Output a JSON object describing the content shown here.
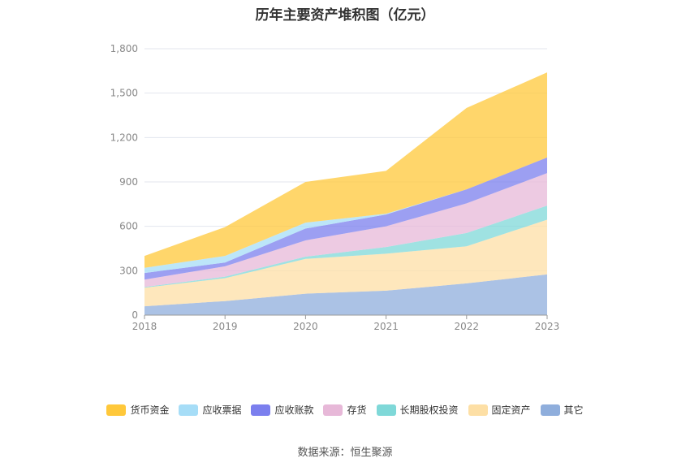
{
  "chart_data": {
    "type": "area",
    "title": "历年主要资产堆积图（亿元）",
    "x": [
      "2018",
      "2019",
      "2020",
      "2021",
      "2022",
      "2023"
    ],
    "y_ticks": [
      "0",
      "300",
      "600",
      "900",
      "1,200",
      "1,500",
      "1,800"
    ],
    "ylim": [
      0,
      1800
    ],
    "stacked": true,
    "grid": true,
    "legend_position": "bottom",
    "series": [
      {
        "name": "其它",
        "color": "#8FAEDC",
        "values": [
          60,
          95,
          145,
          165,
          215,
          275
        ]
      },
      {
        "name": "固定资产",
        "color": "#FDDFA5",
        "values": [
          125,
          155,
          235,
          250,
          250,
          370
        ]
      },
      {
        "name": "长期股权投资",
        "color": "#7FD8D8",
        "values": [
          5,
          10,
          15,
          45,
          90,
          95
        ]
      },
      {
        "name": "存货",
        "color": "#E7B8D8",
        "values": [
          50,
          70,
          110,
          140,
          200,
          220
        ]
      },
      {
        "name": "应收账款",
        "color": "#7B7FEE",
        "values": [
          45,
          25,
          80,
          80,
          95,
          105
        ]
      },
      {
        "name": "应收票据",
        "color": "#A6DDF7",
        "values": [
          35,
          45,
          40,
          5,
          0,
          0
        ]
      },
      {
        "name": "货币资金",
        "color": "#FFC83A",
        "values": [
          80,
          195,
          275,
          290,
          550,
          575
        ]
      }
    ]
  },
  "legend_order": [
    "货币资金",
    "应收票据",
    "应收账款",
    "存货",
    "长期股权投资",
    "固定资产",
    "其它"
  ],
  "source_text": "数据来源：恒生聚源"
}
